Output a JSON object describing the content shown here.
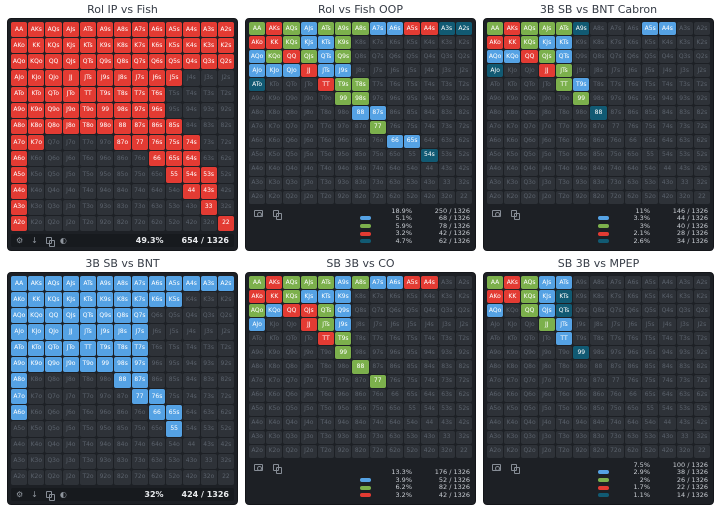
{
  "colors": {
    "b": "#55a2e4",
    "g": "#7cb04c",
    "r": "#e33b33",
    "t": "#115a73",
    "cell_gray": "#2e3238",
    "panel_bg": "#1d2025",
    "page_bg": "#ffffff",
    "cell_text_on_color": "#ffffff",
    "cell_text_gray": "#5b626c"
  },
  "icon_glyphs": {
    "gear-icon": "⚙",
    "download-icon": "↓",
    "contrast-icon": "◐"
  },
  "hand_matrix": [
    [
      "AA",
      "AKs",
      "AQs",
      "AJs",
      "ATs",
      "A9s",
      "A8s",
      "A7s",
      "A6s",
      "A5s",
      "A4s",
      "A3s",
      "A2s"
    ],
    [
      "AKo",
      "KK",
      "KQs",
      "KJs",
      "KTs",
      "K9s",
      "K8s",
      "K7s",
      "K6s",
      "K5s",
      "K4s",
      "K3s",
      "K2s"
    ],
    [
      "AQo",
      "KQo",
      "QQ",
      "QJs",
      "QTs",
      "Q9s",
      "Q8s",
      "Q7s",
      "Q6s",
      "Q5s",
      "Q4s",
      "Q3s",
      "Q2s"
    ],
    [
      "AJo",
      "KJo",
      "QJo",
      "JJ",
      "JTs",
      "J9s",
      "J8s",
      "J7s",
      "J6s",
      "J5s",
      "J4s",
      "J3s",
      "J2s"
    ],
    [
      "ATo",
      "KTo",
      "QTo",
      "JTo",
      "TT",
      "T9s",
      "T8s",
      "T7s",
      "T6s",
      "T5s",
      "T4s",
      "T3s",
      "T2s"
    ],
    [
      "A9o",
      "K9o",
      "Q9o",
      "J9o",
      "T9o",
      "99",
      "98s",
      "97s",
      "96s",
      "95s",
      "94s",
      "93s",
      "92s"
    ],
    [
      "A8o",
      "K8o",
      "Q8o",
      "J8o",
      "T8o",
      "98o",
      "88",
      "87s",
      "86s",
      "85s",
      "84s",
      "83s",
      "82s"
    ],
    [
      "A7o",
      "K7o",
      "Q7o",
      "J7o",
      "T7o",
      "97o",
      "87o",
      "77",
      "76s",
      "75s",
      "74s",
      "73s",
      "72s"
    ],
    [
      "A6o",
      "K6o",
      "Q6o",
      "J6o",
      "T6o",
      "96o",
      "86o",
      "76o",
      "66",
      "65s",
      "64s",
      "63s",
      "62s"
    ],
    [
      "A5o",
      "K5o",
      "Q5o",
      "J5o",
      "T5o",
      "95o",
      "85o",
      "75o",
      "65o",
      "55",
      "54s",
      "53s",
      "52s"
    ],
    [
      "A4o",
      "K4o",
      "Q4o",
      "J4o",
      "T4o",
      "94o",
      "84o",
      "74o",
      "64o",
      "54o",
      "44",
      "43s",
      "42s"
    ],
    [
      "A3o",
      "K3o",
      "Q3o",
      "J3o",
      "T3o",
      "93o",
      "83o",
      "73o",
      "63o",
      "53o",
      "43o",
      "33",
      "32s"
    ],
    [
      "A2o",
      "K2o",
      "Q2o",
      "J2o",
      "T2o",
      "92o",
      "82o",
      "72o",
      "62o",
      "52o",
      "42o",
      "32o",
      "22"
    ]
  ],
  "panels": [
    {
      "title": "Rol IP vs Fish",
      "cells": [
        {
          "code": "r",
          "hands": [
            "AA",
            "AKs",
            "AQs",
            "AJs",
            "ATs",
            "A9s",
            "A8s",
            "A7s",
            "A6s",
            "A5s",
            "A4s",
            "A3s",
            "A2s",
            "AKo",
            "KK",
            "KQs",
            "KJs",
            "KTs",
            "K9s",
            "K8s",
            "K7s",
            "K6s",
            "K5s",
            "K4s",
            "K3s",
            "K2s",
            "AQo",
            "KQo",
            "QQ",
            "QJs",
            "QTs",
            "Q9s",
            "Q8s",
            "Q7s",
            "Q6s",
            "Q5s",
            "Q4s",
            "Q3s",
            "Q2s",
            "AJo",
            "KJo",
            "QJo",
            "JJ",
            "JTs",
            "J9s",
            "J8s",
            "J7s",
            "J6s",
            "J5s",
            "ATo",
            "KTo",
            "QTo",
            "JTo",
            "TT",
            "T9s",
            "T8s",
            "T7s",
            "T6s",
            "A9o",
            "K9o",
            "Q9o",
            "J9o",
            "T9o",
            "99",
            "98s",
            "97s",
            "96s",
            "A8o",
            "K8o",
            "Q8o",
            "J8o",
            "T8o",
            "98o",
            "88",
            "87s",
            "86s",
            "85s",
            "A7o",
            "K7o",
            "87o",
            "77",
            "76s",
            "75s",
            "74s",
            "A6o",
            "66",
            "65s",
            "64s",
            "A5o",
            "55",
            "54s",
            "53s",
            "A4o",
            "44",
            "43s",
            "A3o",
            "33",
            "A2o",
            "22"
          ]
        }
      ],
      "footer": {
        "type": "bar",
        "icons": [
          "gear-icon",
          "download-icon",
          "copy-icon",
          "contrast-icon"
        ],
        "pct": "49.3%",
        "count": "654 / 1326"
      }
    },
    {
      "title": "Rol vs Fish OOP",
      "cells": [
        {
          "code": "b",
          "hands": [
            "AJs",
            "A7s",
            "A6s",
            "KJs",
            "KTs",
            "AQo",
            "QTs",
            "AJo",
            "KJo",
            "QJo",
            "JTs",
            "J9s",
            "88",
            "87s",
            "66",
            "65s"
          ]
        },
        {
          "code": "g",
          "hands": [
            "AA",
            "AQs",
            "ATs",
            "A9s",
            "A8s",
            "KQs",
            "K9s",
            "KQo",
            "QJs",
            "Q9s",
            "T9s",
            "T8s",
            "99",
            "98s",
            "77"
          ]
        },
        {
          "code": "r",
          "hands": [
            "AKs",
            "A5s",
            "A4s",
            "AKo",
            "KK",
            "QQ",
            "JJ",
            "TT"
          ]
        },
        {
          "code": "t",
          "hands": [
            "A3s",
            "A2s",
            "ATo",
            "54s"
          ]
        }
      ],
      "footer": {
        "type": "legend",
        "icons": [
          "camera-icon",
          "copy-icon"
        ],
        "rows": [
          {
            "swatch": null,
            "pct": "18.9%",
            "count": "250 / 1326"
          },
          {
            "swatch": "b",
            "pct": "5.1%",
            "count": "68 / 1326"
          },
          {
            "swatch": "g",
            "pct": "5.9%",
            "count": "78 / 1326"
          },
          {
            "swatch": "r",
            "pct": "3.2%",
            "count": "42 / 1326"
          },
          {
            "swatch": "t",
            "pct": "4.7%",
            "count": "62 / 1326"
          }
        ]
      }
    },
    {
      "title": "3B SB vs BNT Cabron",
      "cells": [
        {
          "code": "b",
          "hands": [
            "A5s",
            "A4s",
            "KJs",
            "KTs",
            "AQo",
            "KQo",
            "QTs",
            "T9s"
          ]
        },
        {
          "code": "g",
          "hands": [
            "AA",
            "AQs",
            "AJs",
            "ATs",
            "KQs",
            "QJs",
            "JTs",
            "TT",
            "99"
          ]
        },
        {
          "code": "r",
          "hands": [
            "AKs",
            "AKo",
            "KK",
            "QQ",
            "JJ"
          ]
        },
        {
          "code": "t",
          "hands": [
            "A9s",
            "AJo",
            "88"
          ]
        }
      ],
      "footer": {
        "type": "legend",
        "icons": [
          "camera-icon",
          "copy-icon"
        ],
        "rows": [
          {
            "swatch": null,
            "pct": "11%",
            "count": "146 / 1326"
          },
          {
            "swatch": "b",
            "pct": "3.3%",
            "count": "44 / 1326"
          },
          {
            "swatch": "g",
            "pct": "3%",
            "count": "40 / 1326"
          },
          {
            "swatch": "r",
            "pct": "2.1%",
            "count": "28 / 1326"
          },
          {
            "swatch": "t",
            "pct": "2.6%",
            "count": "34 / 1326"
          }
        ]
      }
    },
    {
      "title": "3B SB vs BNT",
      "cells": [
        {
          "code": "b",
          "hands": [
            "AA",
            "AKs",
            "AQs",
            "AJs",
            "ATs",
            "A9s",
            "A8s",
            "A7s",
            "A6s",
            "A5s",
            "A4s",
            "A3s",
            "A2s",
            "AKo",
            "KK",
            "KQs",
            "KJs",
            "KTs",
            "K9s",
            "K8s",
            "K7s",
            "K6s",
            "K5s",
            "AQo",
            "KQo",
            "QQ",
            "QJs",
            "QTs",
            "Q9s",
            "Q8s",
            "Q7s",
            "AJo",
            "KJo",
            "QJo",
            "JJ",
            "JTs",
            "J9s",
            "J8s",
            "J7s",
            "ATo",
            "KTo",
            "QTo",
            "JTo",
            "TT",
            "T9s",
            "T8s",
            "T7s",
            "A9o",
            "K9o",
            "Q9o",
            "J9o",
            "T9o",
            "99",
            "98s",
            "97s",
            "A8o",
            "88",
            "87s",
            "A7o",
            "77",
            "76s",
            "A6o",
            "66",
            "65s",
            "55"
          ]
        }
      ],
      "footer": {
        "type": "bar",
        "icons": [
          "gear-icon",
          "download-icon",
          "copy-icon",
          "contrast-icon"
        ],
        "pct": "32%",
        "count": "424 / 1326"
      }
    },
    {
      "title": "SB 3B vs CO",
      "cells": [
        {
          "code": "b",
          "hands": [
            "A9s",
            "A7s",
            "A6s",
            "KJs",
            "KTs",
            "K9s",
            "KQo",
            "Q9s",
            "AJo",
            "J9s"
          ]
        },
        {
          "code": "g",
          "hands": [
            "AA",
            "AQs",
            "AJs",
            "ATs",
            "A8s",
            "KQs",
            "AQo",
            "QTs",
            "JTs",
            "T9s",
            "99",
            "88",
            "77"
          ]
        },
        {
          "code": "r",
          "hands": [
            "AKs",
            "A5s",
            "A4s",
            "AKo",
            "KK",
            "QQ",
            "QJs",
            "JJ",
            "TT"
          ]
        }
      ],
      "footer": {
        "type": "legend",
        "icons": [
          "camera-icon",
          "copy-icon"
        ],
        "rows": [
          {
            "swatch": null,
            "pct": "13.3%",
            "count": "176 / 1326"
          },
          {
            "swatch": "b",
            "pct": "3.9%",
            "count": "52 / 1326"
          },
          {
            "swatch": "g",
            "pct": "6.2%",
            "count": "82 / 1326"
          },
          {
            "swatch": "r",
            "pct": "3.2%",
            "count": "42 / 1326"
          }
        ]
      }
    },
    {
      "title": "SB 3B vs MPEP",
      "cells": [
        {
          "code": "b",
          "hands": [
            "AJs",
            "ATs",
            "KJs",
            "AQo",
            "QJs",
            "JTs",
            "TT"
          ]
        },
        {
          "code": "g",
          "hands": [
            "AA",
            "AQs",
            "KQs",
            "QQ",
            "JJ"
          ]
        },
        {
          "code": "r",
          "hands": [
            "AKs",
            "AKo",
            "KK"
          ]
        },
        {
          "code": "t",
          "hands": [
            "KTs",
            "QTs",
            "99"
          ]
        }
      ],
      "footer": {
        "type": "legend",
        "icons": [
          "camera-icon",
          "copy-icon"
        ],
        "rows": [
          {
            "swatch": null,
            "pct": "7.5%",
            "count": "100 / 1326"
          },
          {
            "swatch": "b",
            "pct": "2.9%",
            "count": "38 / 1326"
          },
          {
            "swatch": "g",
            "pct": "2%",
            "count": "26 / 1326"
          },
          {
            "swatch": "r",
            "pct": "1.7%",
            "count": "22 / 1326"
          },
          {
            "swatch": "t",
            "pct": "1.1%",
            "count": "14 / 1326"
          }
        ]
      }
    }
  ]
}
